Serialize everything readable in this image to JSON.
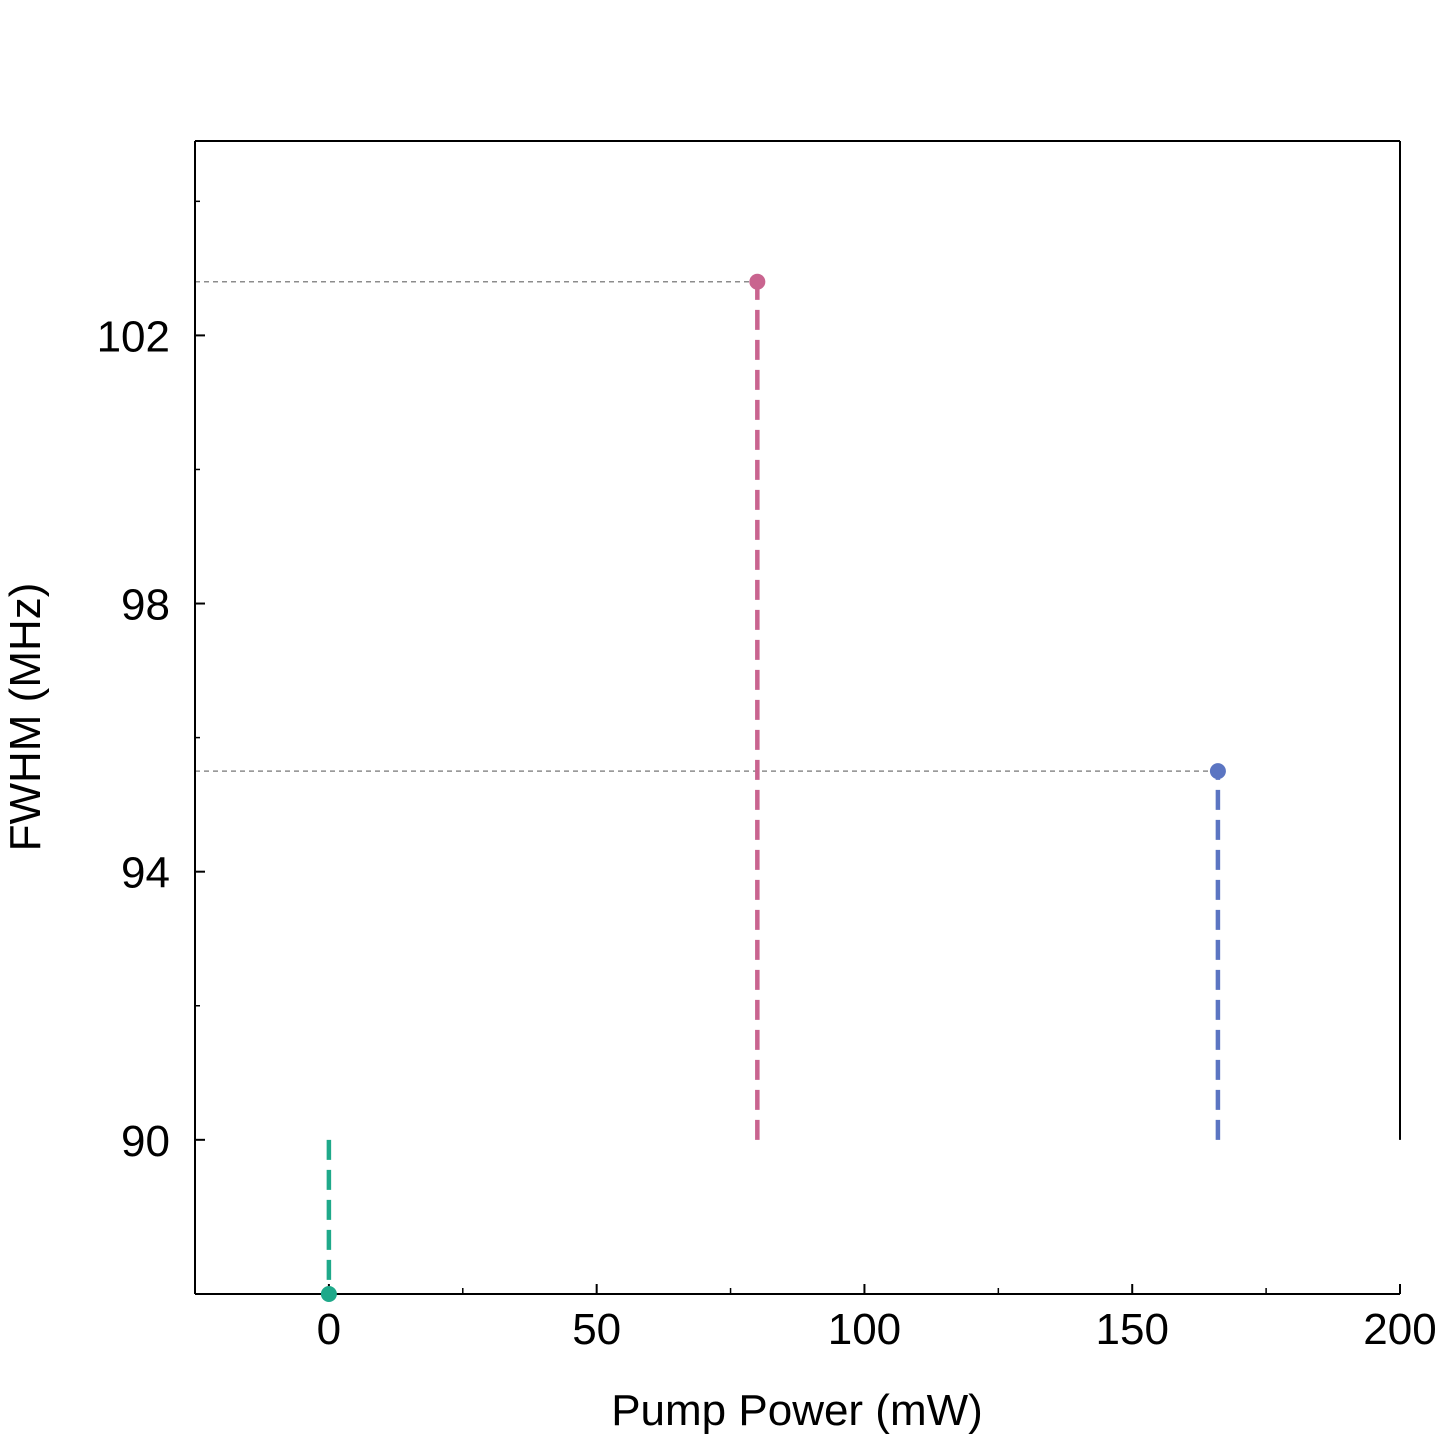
{
  "chart_data": {
    "type": "scatter",
    "title": "",
    "xlabel": "Pump Power (mW)",
    "ylabel": "FWHM (MHz)",
    "xlim": [
      -25,
      200
    ],
    "ylim": [
      87.7,
      104.9
    ],
    "x_ticks": [
      0,
      50,
      100,
      150,
      200
    ],
    "x_tick_labels": [
      "0",
      "50",
      "100",
      "150",
      "200"
    ],
    "x_minor_ticks": [
      25,
      75,
      125,
      175
    ],
    "y_ticks": [
      90,
      94,
      98,
      102
    ],
    "y_tick_labels": [
      "90",
      "94",
      "98",
      "102"
    ],
    "y_minor_ticks": [
      92,
      96,
      100,
      104
    ],
    "grid": false,
    "stem_baseline": 90,
    "points": [
      {
        "x": 0,
        "y": 87.7,
        "color": "#1fa98a"
      },
      {
        "x": 80,
        "y": 102.8,
        "color": "#c9648f"
      },
      {
        "x": 166,
        "y": 95.5,
        "color": "#5b75c2"
      }
    ],
    "guide_color": "#8c8c8c"
  }
}
